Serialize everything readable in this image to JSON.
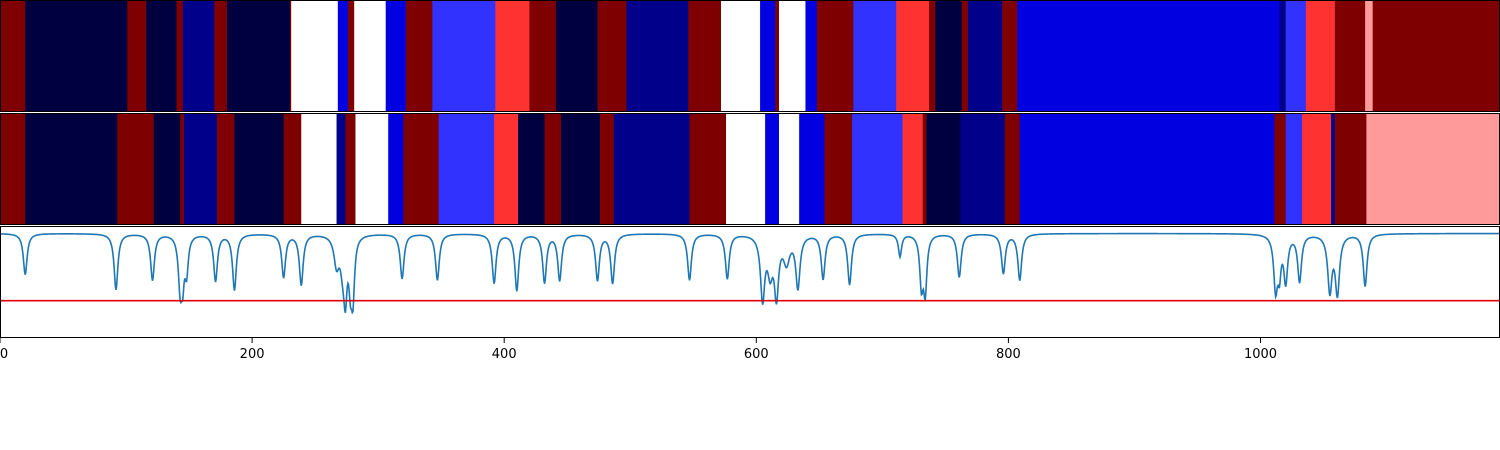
{
  "chart_data": {
    "type": "heatmap",
    "title": "",
    "xlabel": "",
    "ylabel": "",
    "xlim": [
      0,
      1190
    ],
    "colors": {
      "dark_navy": "#000040",
      "navy": "#00008b",
      "blue": "#0000e0",
      "light_blue": "#3232ff",
      "white": "#ffffff",
      "red": "#ff3232",
      "pink": "#ff9a9a",
      "dark_red": "#7f0000",
      "trace_line": "#1f77b4",
      "threshold_line": "#e00000"
    },
    "tracks": [
      {
        "segments": [
          [
            0,
            20,
            "dark_red"
          ],
          [
            20,
            101,
            "dark_navy"
          ],
          [
            101,
            116,
            "dark_red"
          ],
          [
            116,
            140,
            "dark_navy"
          ],
          [
            140,
            145,
            "dark_red"
          ],
          [
            145,
            170,
            "navy"
          ],
          [
            170,
            180,
            "dark_red"
          ],
          [
            180,
            230,
            "dark_navy"
          ],
          [
            230,
            231,
            "dark_red"
          ],
          [
            231,
            268,
            "white"
          ],
          [
            268,
            276,
            "blue"
          ],
          [
            276,
            281,
            "dark_red"
          ],
          [
            281,
            306,
            "white"
          ],
          [
            306,
            322,
            "blue"
          ],
          [
            322,
            343,
            "dark_red"
          ],
          [
            343,
            393,
            "light_blue"
          ],
          [
            393,
            420,
            "red"
          ],
          [
            420,
            441,
            "dark_red"
          ],
          [
            441,
            474,
            "dark_navy"
          ],
          [
            474,
            497,
            "dark_red"
          ],
          [
            497,
            546,
            "navy"
          ],
          [
            546,
            572,
            "dark_red"
          ],
          [
            572,
            603,
            "white"
          ],
          [
            603,
            615,
            "blue"
          ],
          [
            615,
            618,
            "dark_red"
          ],
          [
            618,
            639,
            "white"
          ],
          [
            639,
            648,
            "blue"
          ],
          [
            648,
            677,
            "dark_red"
          ],
          [
            677,
            711,
            "light_blue"
          ],
          [
            711,
            737,
            "red"
          ],
          [
            737,
            742,
            "dark_red"
          ],
          [
            742,
            763,
            "dark_navy"
          ],
          [
            763,
            768,
            "dark_red"
          ],
          [
            768,
            795,
            "navy"
          ],
          [
            795,
            807,
            "dark_red"
          ],
          [
            807,
            1015,
            "blue"
          ],
          [
            1015,
            1020,
            "navy"
          ],
          [
            1020,
            1036,
            "light_blue"
          ],
          [
            1036,
            1059,
            "red"
          ],
          [
            1059,
            1083,
            "dark_red"
          ],
          [
            1083,
            1089,
            "pink"
          ],
          [
            1089,
            1190,
            "dark_red"
          ]
        ]
      },
      {
        "segments": [
          [
            0,
            20,
            "dark_red"
          ],
          [
            20,
            93,
            "dark_navy"
          ],
          [
            93,
            122,
            "dark_red"
          ],
          [
            122,
            143,
            "dark_navy"
          ],
          [
            143,
            146,
            "dark_red"
          ],
          [
            146,
            172,
            "navy"
          ],
          [
            172,
            186,
            "dark_red"
          ],
          [
            186,
            225,
            "dark_navy"
          ],
          [
            225,
            239,
            "dark_red"
          ],
          [
            239,
            267,
            "white"
          ],
          [
            267,
            274,
            "navy"
          ],
          [
            274,
            282,
            "dark_red"
          ],
          [
            282,
            308,
            "white"
          ],
          [
            308,
            320,
            "blue"
          ],
          [
            320,
            348,
            "dark_red"
          ],
          [
            348,
            392,
            "light_blue"
          ],
          [
            392,
            411,
            "red"
          ],
          [
            411,
            432,
            "dark_navy"
          ],
          [
            432,
            445,
            "dark_red"
          ],
          [
            445,
            476,
            "dark_navy"
          ],
          [
            476,
            487,
            "dark_red"
          ],
          [
            487,
            547,
            "navy"
          ],
          [
            547,
            576,
            "dark_red"
          ],
          [
            576,
            607,
            "white"
          ],
          [
            607,
            618,
            "blue"
          ],
          [
            618,
            634,
            "white"
          ],
          [
            634,
            654,
            "blue"
          ],
          [
            654,
            676,
            "dark_red"
          ],
          [
            676,
            716,
            "light_blue"
          ],
          [
            716,
            732,
            "red"
          ],
          [
            732,
            735,
            "dark_red"
          ],
          [
            735,
            762,
            "dark_navy"
          ],
          [
            762,
            797,
            "navy"
          ],
          [
            797,
            809,
            "dark_red"
          ],
          [
            809,
            1011,
            "blue"
          ],
          [
            1011,
            1020,
            "dark_red"
          ],
          [
            1020,
            1033,
            "light_blue"
          ],
          [
            1033,
            1056,
            "red"
          ],
          [
            1056,
            1059,
            "navy"
          ],
          [
            1059,
            1084,
            "dark_red"
          ],
          [
            1084,
            1190,
            "pink"
          ]
        ]
      }
    ],
    "trace": {
      "ylim": [
        -1.4,
        0.1
      ],
      "threshold": -0.9,
      "baseline": 0,
      "dips": [
        [
          20,
          0.55,
          1.8
        ],
        [
          92,
          0.75,
          1.8
        ],
        [
          121,
          0.62,
          1.8
        ],
        [
          143,
          0.72,
          1.8
        ],
        [
          145,
          0.45,
          1.3
        ],
        [
          148,
          0.48,
          1.6
        ],
        [
          171,
          0.63,
          1.8
        ],
        [
          186,
          0.75,
          1.8
        ],
        [
          225,
          0.58,
          1.8
        ],
        [
          239,
          0.68,
          1.8
        ],
        [
          267,
          0.38,
          2.4
        ],
        [
          272,
          0.38,
          2.4
        ],
        [
          274,
          0.68,
          1.5
        ],
        [
          278,
          0.55,
          1.5
        ],
        [
          280,
          0.76,
          1.5
        ],
        [
          319,
          0.6,
          1.8
        ],
        [
          347,
          0.62,
          1.8
        ],
        [
          392,
          0.66,
          1.8
        ],
        [
          410,
          0.76,
          1.8
        ],
        [
          432,
          0.65,
          1.8
        ],
        [
          444,
          0.62,
          1.8
        ],
        [
          474,
          0.62,
          1.8
        ],
        [
          486,
          0.66,
          1.8
        ],
        [
          547,
          0.62,
          1.8
        ],
        [
          577,
          0.6,
          1.8
        ],
        [
          605,
          0.85,
          2.0
        ],
        [
          611,
          0.45,
          2.4
        ],
        [
          616,
          0.78,
          2.0
        ],
        [
          624,
          0.35,
          3.0
        ],
        [
          633,
          0.7,
          2.0
        ],
        [
          653,
          0.6,
          1.8
        ],
        [
          674,
          0.68,
          1.8
        ],
        [
          714,
          0.3,
          1.5
        ],
        [
          731,
          0.65,
          1.6
        ],
        [
          734,
          0.74,
          1.6
        ],
        [
          761,
          0.58,
          1.8
        ],
        [
          796,
          0.53,
          1.8
        ],
        [
          809,
          0.62,
          1.8
        ],
        [
          1012,
          0.72,
          1.8
        ],
        [
          1015,
          0.45,
          1.5
        ],
        [
          1020,
          0.62,
          1.8
        ],
        [
          1031,
          0.63,
          1.8
        ],
        [
          1055,
          0.75,
          2.0
        ],
        [
          1061,
          0.78,
          2.0
        ],
        [
          1083,
          0.7,
          1.8
        ]
      ]
    },
    "xticks": [
      0,
      200,
      400,
      600,
      800,
      1000
    ],
    "xtick_labels": [
      "0",
      "200",
      "400",
      "600",
      "800",
      "1000"
    ],
    "grid": false,
    "legend": "none"
  }
}
